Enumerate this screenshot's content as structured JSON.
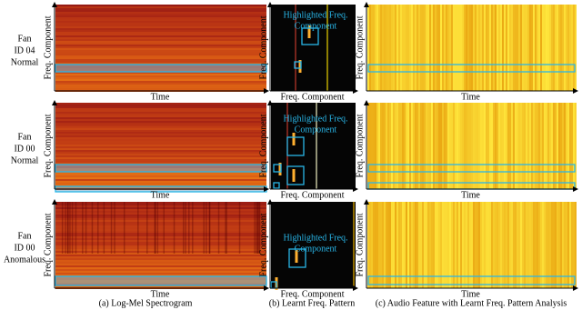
{
  "rows": [
    {
      "label": [
        "Fan",
        "ID 04",
        "Normal"
      ]
    },
    {
      "label": [
        "Fan",
        "ID 00",
        "Normal"
      ]
    },
    {
      "label": [
        "Fan",
        "ID 00",
        "Anomalous"
      ]
    }
  ],
  "axes": {
    "time": "Time",
    "freq": "Freq. Component"
  },
  "annotation": [
    "Highlighted Freq.",
    "Component"
  ],
  "captions": [
    "(a) Log-Mel Spectrogram",
    "(b) Learnt Freq. Pattern",
    "(c) Audio Feature with Learnt Freq. Pattern Analysis"
  ]
}
